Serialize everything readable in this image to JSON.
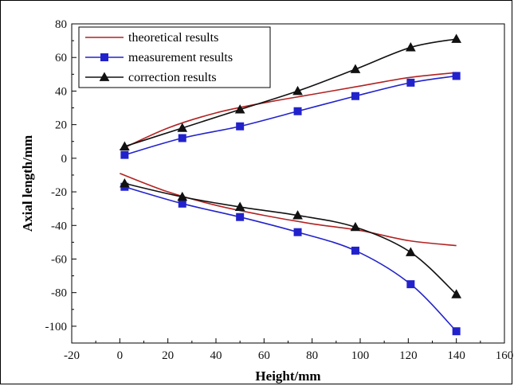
{
  "chart_data": {
    "type": "line",
    "xlabel": "Height/mm",
    "ylabel": "Axial length/mm",
    "xlim": [
      -20,
      160
    ],
    "ylim": [
      -110,
      80
    ],
    "x_ticks": [
      -20,
      0,
      20,
      40,
      60,
      80,
      100,
      120,
      140,
      160
    ],
    "y_ticks": [
      -100,
      -80,
      -60,
      -40,
      -20,
      0,
      20,
      40,
      60,
      80
    ],
    "grid": false,
    "legend_position": "top-left",
    "series": [
      {
        "name": "theoretical results",
        "color": "#b22222",
        "marker": "none",
        "branches": [
          {
            "x": [
              0,
              20,
              40,
              60,
              80,
              100,
              120,
              140
            ],
            "y": [
              5,
              18,
              27,
              33,
              38,
              43,
              48,
              51
            ]
          },
          {
            "x": [
              0,
              20,
              40,
              60,
              80,
              100,
              120,
              140
            ],
            "y": [
              -9,
              -20,
              -28,
              -34,
              -39,
              -43,
              -49,
              -52
            ]
          }
        ]
      },
      {
        "name": "measurement results",
        "color": "#2222cc",
        "marker": "square",
        "branches": [
          {
            "x": [
              2,
              26,
              50,
              74,
              98,
              121,
              140
            ],
            "y": [
              2,
              12,
              19,
              28,
              37,
              45,
              49
            ]
          },
          {
            "x": [
              2,
              26,
              50,
              74,
              98,
              121,
              140
            ],
            "y": [
              -17,
              -27,
              -35,
              -44,
              -55,
              -75,
              -103
            ]
          }
        ]
      },
      {
        "name": "correction results",
        "color": "#111111",
        "marker": "triangle",
        "branches": [
          {
            "x": [
              2,
              26,
              50,
              74,
              98,
              121,
              140
            ],
            "y": [
              7,
              18,
              29,
              40,
              53,
              66,
              71
            ]
          },
          {
            "x": [
              2,
              26,
              50,
              74,
              98,
              121,
              140
            ],
            "y": [
              -15,
              -23,
              -29,
              -34,
              -41,
              -56,
              -81
            ]
          }
        ]
      }
    ]
  }
}
